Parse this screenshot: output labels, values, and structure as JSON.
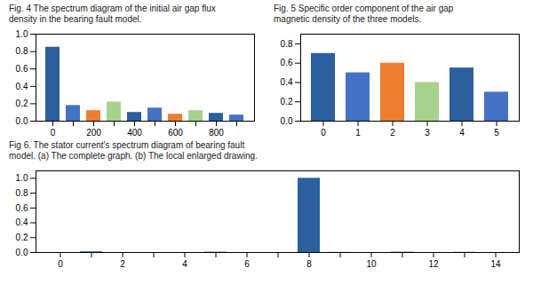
{
  "chart_data": [
    {
      "type": "bar",
      "title": "Fig. 4  The spectrum diagram of the initial air gap flux\ndensity in the bearing  fault model.",
      "categories": [
        "0",
        null,
        "200",
        null,
        "400",
        null,
        "600",
        null,
        "800",
        null
      ],
      "values": [
        0.85,
        0.18,
        0.12,
        0.22,
        0.1,
        0.15,
        0.08,
        0.12,
        0.09,
        0.07
      ],
      "colors": [
        "#2c5f9e",
        "#4472c4",
        "#ed7d31",
        "#a9d18e",
        "#2c5f9e",
        "#4472c4",
        "#ed7d31",
        "#a9d18e",
        "#2c5f9e",
        "#4472c4"
      ],
      "ylim": [
        0,
        1.0
      ],
      "yticks": [
        {
          "value": 0,
          "label": "0.0"
        },
        {
          "value": 0.2,
          "label": "0.2"
        },
        {
          "value": 0.4,
          "label": "0.4"
        },
        {
          "value": 0.6,
          "label": "0.6"
        },
        {
          "value": 0.8,
          "label": "0.8"
        },
        {
          "value": 1.0,
          "label": "1.0"
        }
      ],
      "grid": false
    },
    {
      "type": "bar",
      "title": "Fig. 5  Specific order component of the air gap\nmagnetic density of the three models.",
      "categories": [
        "0",
        "1",
        "2",
        "3",
        "4",
        "5"
      ],
      "values": [
        0.7,
        0.5,
        0.6,
        0.4,
        0.55,
        0.3
      ],
      "colors": [
        "#2c5f9e",
        "#4472c4",
        "#ed7d31",
        "#a9d18e",
        "#2c5f9e",
        "#4472c4"
      ],
      "ylim": [
        0,
        0.9
      ],
      "yticks": [
        {
          "value": 0,
          "label": "0.0"
        },
        {
          "value": 0.2,
          "label": "0.2"
        },
        {
          "value": 0.4,
          "label": "0.4"
        },
        {
          "value": 0.6,
          "label": "0.6"
        },
        {
          "value": 0.8,
          "label": "0.8"
        }
      ],
      "grid": false
    },
    {
      "type": "bar",
      "title": "Fig 6. The stator current's spectrum diagram of bearing fault\nmodel. (a) The complete graph. (b) The local enlarged drawing.",
      "categories": [
        "0",
        null,
        "2",
        null,
        "4",
        null,
        "6",
        null,
        "8",
        null,
        "10",
        null,
        "12",
        null,
        "14"
      ],
      "values": [
        0.0,
        0.01,
        0.0,
        0.0,
        0.0,
        0.005,
        0.0,
        0.0,
        1.0,
        0.002,
        0.0,
        0.005,
        0.0,
        0.003,
        0.0
      ],
      "color": "#2c5f9e",
      "ylim": [
        0,
        1.1
      ],
      "yticks": [
        {
          "value": 0,
          "label": "0.0"
        },
        {
          "value": 0.2,
          "label": "0.2"
        },
        {
          "value": 0.4,
          "label": "0.4"
        },
        {
          "value": 0.6,
          "label": "0.6"
        },
        {
          "value": 0.8,
          "label": "0.8"
        },
        {
          "value": 1.0,
          "label": "1.0"
        }
      ],
      "grid": false
    }
  ]
}
